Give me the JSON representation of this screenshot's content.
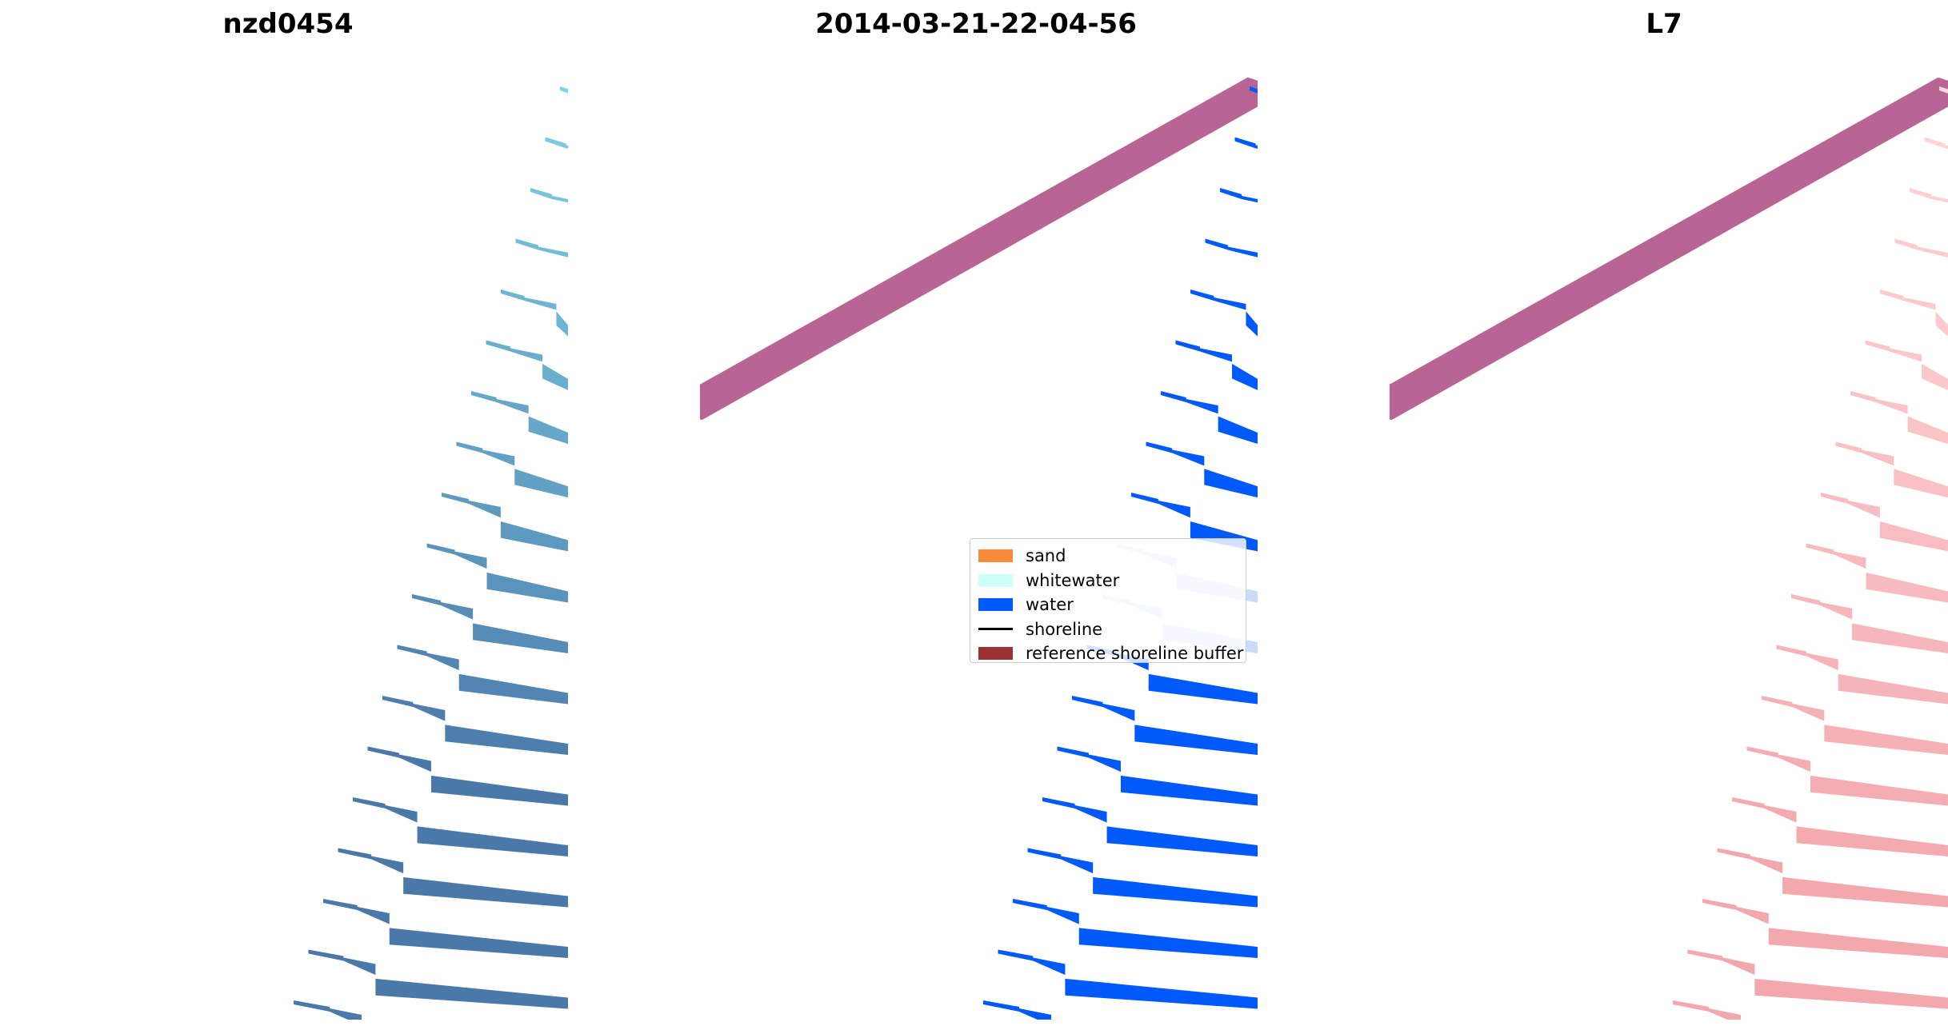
{
  "panels": [
    {
      "title": "nzd0454"
    },
    {
      "title": "2014-03-21-22-04-56"
    },
    {
      "title": "L7"
    }
  ],
  "legend": {
    "entries": [
      {
        "label": "sand",
        "color": "#f88b3a",
        "kind": "patch"
      },
      {
        "label": "whitewater",
        "color": "#ccfff7",
        "kind": "patch"
      },
      {
        "label": "water",
        "color": "#0059fb",
        "kind": "patch"
      },
      {
        "label": "shoreline",
        "color": "#000000",
        "kind": "line"
      },
      {
        "label": "reference shoreline buffer",
        "color": "#9b3232",
        "kind": "patch"
      }
    ]
  },
  "colors": {
    "buffer_overlay": "#b86494",
    "rgb_water_light": "#7fd1e6",
    "rgb_water_dark": "#4a78a8",
    "classified_water": "#0059fb",
    "classified_water_under_legend": "#c9dcfb",
    "mndwi_pink": "#f2a8ad"
  }
}
